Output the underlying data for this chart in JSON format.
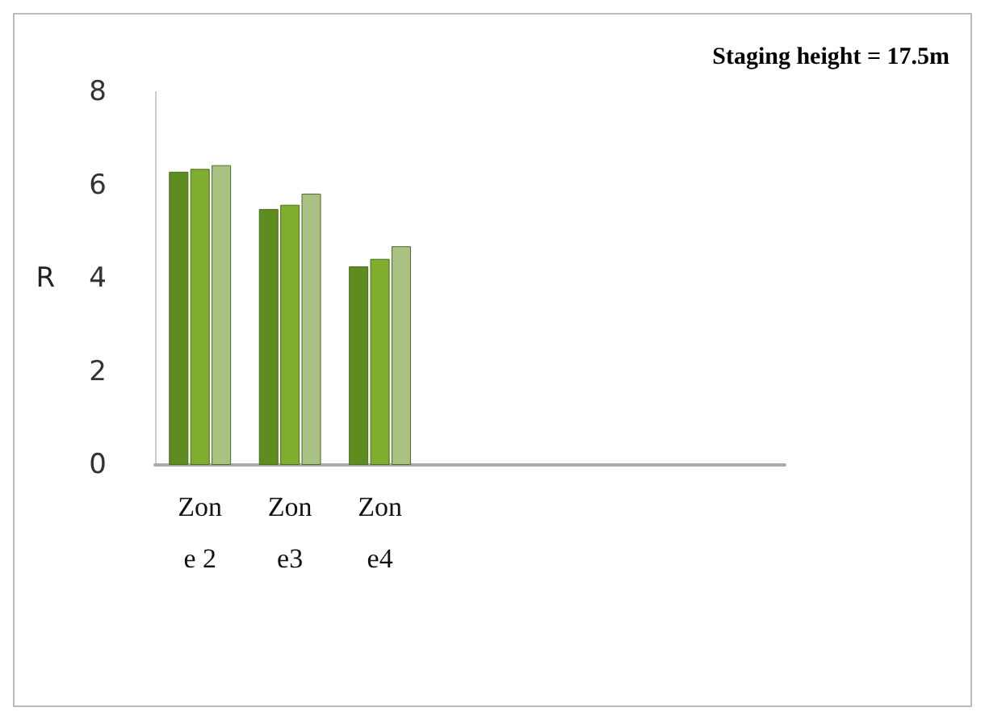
{
  "chart_data": {
    "type": "bar",
    "title": "Staging height = 17.5m",
    "ylabel": "R",
    "categories": [
      "Zone 2",
      "Zone3",
      "Zone4",
      null,
      null,
      null,
      null
    ],
    "series": [
      {
        "color": "#5e8c1f",
        "values": [
          6.29,
          5.49,
          4.26,
          null,
          null,
          null,
          null
        ]
      },
      {
        "color": "#7fae2f",
        "values": [
          6.35,
          5.58,
          4.42,
          null,
          null,
          null,
          null
        ]
      },
      {
        "color": "#a9c283",
        "values": [
          6.43,
          5.82,
          4.69,
          null,
          null,
          null,
          null
        ]
      }
    ],
    "ylim": [
      0,
      8
    ],
    "yticks": [
      0,
      2,
      4,
      6,
      8
    ]
  }
}
